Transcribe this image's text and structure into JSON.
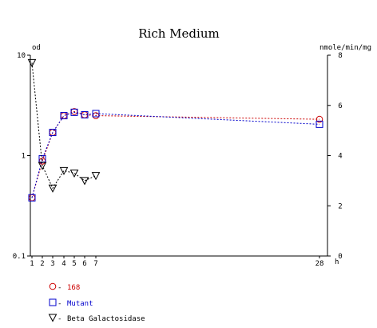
{
  "chart_data": {
    "type": "line",
    "title": "Rich Medium",
    "x_unit": "h",
    "y_left_label": "od",
    "y_right_label": "nmole/min/mg",
    "y_left_scale": "log",
    "y_left_range": [
      0.1,
      10
    ],
    "y_left_ticks": [
      "0.1",
      "1",
      "10"
    ],
    "y_right_range": [
      0,
      8
    ],
    "y_right_ticks": [
      "0",
      "2",
      "4",
      "6",
      "8"
    ],
    "x_ticks": [
      "1",
      "2",
      "3",
      "4",
      "5",
      "6",
      "7",
      "28"
    ],
    "grid": false,
    "legend_position": "bottom-left",
    "series": [
      {
        "name": "168",
        "axis": "left",
        "marker": "circle",
        "color": "#cc0000",
        "points": [
          [
            1,
            0.38
          ],
          [
            2,
            0.88
          ],
          [
            3,
            1.7
          ],
          [
            4,
            2.5
          ],
          [
            5,
            2.75
          ],
          [
            6,
            2.55
          ],
          [
            7,
            2.5
          ],
          [
            28,
            2.3
          ]
        ]
      },
      {
        "name": "Mutant",
        "axis": "left",
        "marker": "square",
        "color": "#0000cc",
        "points": [
          [
            1,
            0.38
          ],
          [
            2,
            0.93
          ],
          [
            3,
            1.7
          ],
          [
            4,
            2.5
          ],
          [
            5,
            2.7
          ],
          [
            6,
            2.55
          ],
          [
            7,
            2.62
          ],
          [
            28,
            2.05
          ]
        ]
      },
      {
        "name": "Beta Galactosidase",
        "axis": "right",
        "marker": "triangle-down",
        "color": "#000000",
        "points": [
          [
            1,
            7.7
          ],
          [
            2,
            3.6
          ],
          [
            3,
            2.7
          ],
          [
            4,
            3.4
          ],
          [
            5,
            3.3
          ],
          [
            6,
            3.0
          ],
          [
            7,
            3.2
          ]
        ]
      }
    ]
  }
}
